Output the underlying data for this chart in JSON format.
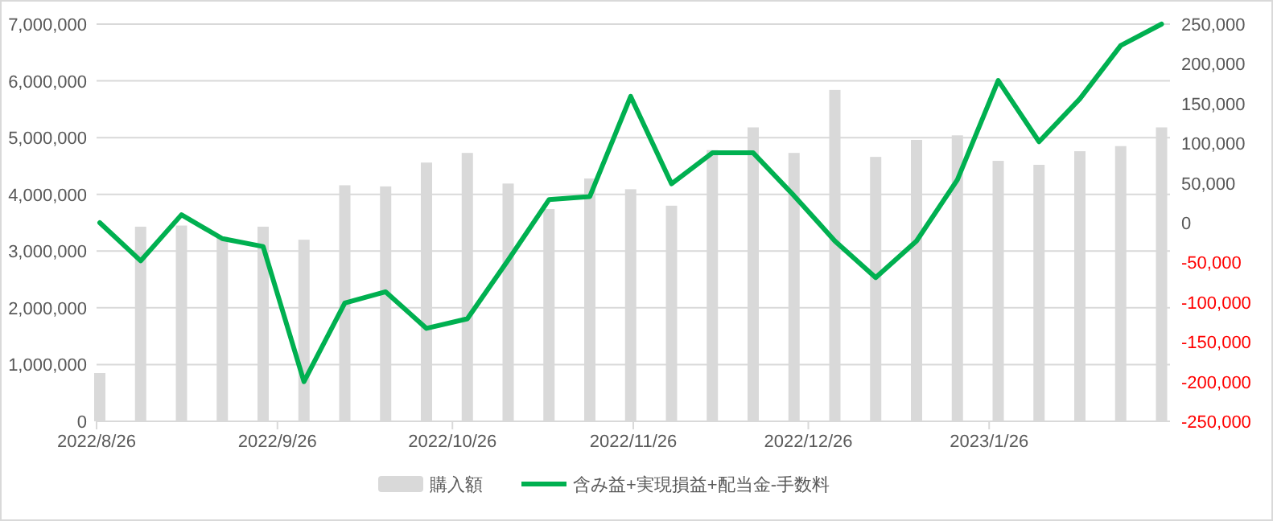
{
  "chart_data": {
    "type": "bar",
    "x": [
      "2022-08-26",
      "2022-09-02",
      "2022-09-09",
      "2022-09-16",
      "2022-09-23",
      "2022-09-30",
      "2022-10-07",
      "2022-10-14",
      "2022-10-21",
      "2022-10-28",
      "2022-11-04",
      "2022-11-11",
      "2022-11-18",
      "2022-11-25",
      "2022-12-02",
      "2022-12-09",
      "2022-12-16",
      "2022-12-23",
      "2022-12-30",
      "2023-01-06",
      "2023-01-13",
      "2023-01-20",
      "2023-01-27",
      "2023-02-03",
      "2023-02-10",
      "2023-02-17",
      "2023-02-24"
    ],
    "series": [
      {
        "name": "購入額",
        "color": "#d9d9d9",
        "values": [
          850000,
          3430000,
          3450000,
          3250000,
          3430000,
          3200000,
          4160000,
          4140000,
          4560000,
          4730000,
          4190000,
          3740000,
          4280000,
          4090000,
          3800000,
          4780000,
          5180000,
          4730000,
          5840000,
          4660000,
          4960000,
          5040000,
          4590000,
          4520000,
          4760000,
          4850000,
          5180000
        ]
      },
      {
        "name": "含み益+実現損益+配当金-手数料",
        "type": "line",
        "axis": "y2",
        "color": "#00b050",
        "values": [
          0,
          -48000,
          10000,
          -20000,
          -30000,
          -200000,
          -101000,
          -87000,
          -133000,
          -121000,
          -47000,
          29000,
          33000,
          159000,
          49000,
          88000,
          88000,
          34000,
          -23000,
          -69000,
          -23000,
          54000,
          179000,
          102000,
          156000,
          223000,
          250000
        ]
      }
    ],
    "xlim": [
      "2022-08-26",
      "2023-02-26"
    ],
    "xticks": [
      {
        "value": "2022-08-26",
        "label": "2022/8/26"
      },
      {
        "value": "2022-09-26",
        "label": "2022/9/26"
      },
      {
        "value": "2022-10-26",
        "label": "2022/10/26"
      },
      {
        "value": "2022-11-26",
        "label": "2022/11/26"
      },
      {
        "value": "2022-12-26",
        "label": "2022/12/26"
      },
      {
        "value": "2023-01-26",
        "label": "2023/1/26"
      }
    ],
    "ylim": [
      0,
      7000000
    ],
    "yticks": [
      0,
      {
        "value": 1000000,
        "label": "1,000,000"
      },
      {
        "value": 2000000,
        "label": "2,000,000"
      },
      {
        "value": 3000000,
        "label": "3,000,000"
      },
      {
        "value": 4000000,
        "label": "4,000,000"
      },
      {
        "value": 5000000,
        "label": "5,000,000"
      },
      {
        "value": 6000000,
        "label": "6,000,000"
      },
      {
        "value": 7000000,
        "label": "7,000,000"
      }
    ],
    "y2lim": [
      -250000,
      250000
    ],
    "y2ticks": [
      {
        "value": -250000,
        "label": "-250,000"
      },
      {
        "value": -200000,
        "label": "-200,000"
      },
      {
        "value": -150000,
        "label": "-150,000"
      },
      {
        "value": -100000,
        "label": "-100,000"
      },
      {
        "value": -50000,
        "label": "-50,000"
      },
      0,
      {
        "value": 50000,
        "label": "50,000"
      },
      {
        "value": 100000,
        "label": "100,000"
      },
      {
        "value": 150000,
        "label": "150,000"
      },
      {
        "value": 200000,
        "label": "200,000"
      },
      {
        "value": 250000,
        "label": "250,000"
      }
    ],
    "grid": "y",
    "legend": "bottom"
  }
}
